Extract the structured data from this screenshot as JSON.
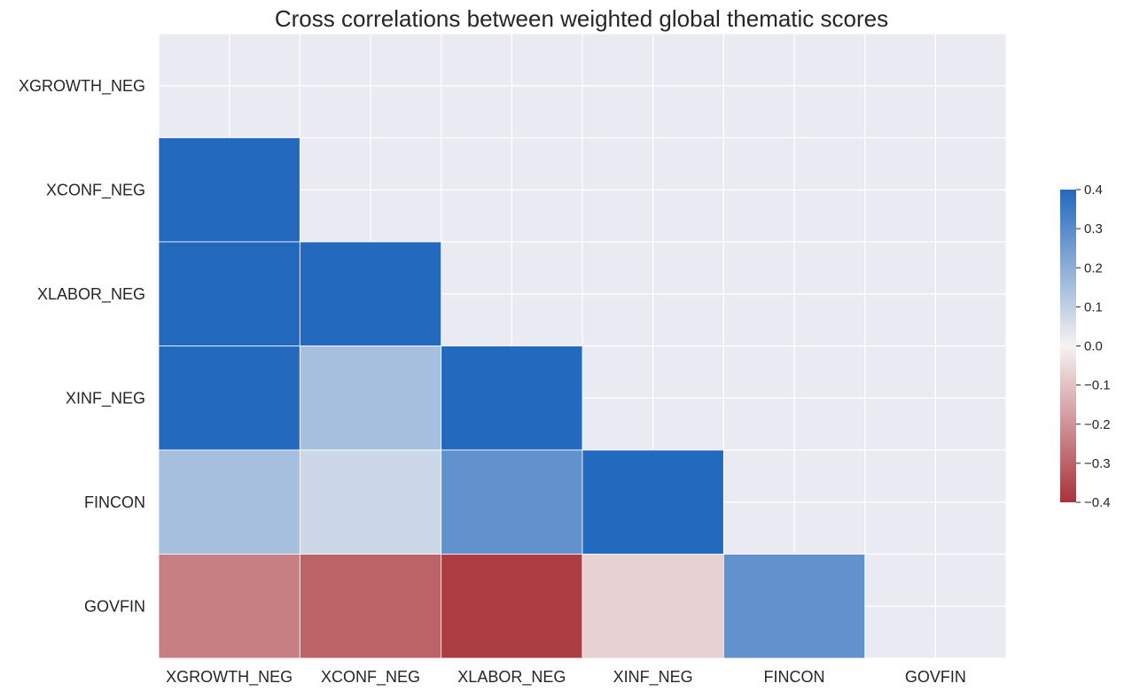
{
  "chart_data": {
    "type": "heatmap",
    "title": "Cross correlations between weighted global thematic scores",
    "xlabel": "",
    "ylabel": "",
    "row_labels": [
      "XGROWTH_NEG",
      "XCONF_NEG",
      "XLABOR_NEG",
      "XINF_NEG",
      "FINCON",
      "GOVFIN"
    ],
    "col_labels": [
      "XGROWTH_NEG",
      "XCONF_NEG",
      "XLABOR_NEG",
      "XINF_NEG",
      "FINCON",
      "GOVFIN"
    ],
    "mask": "upper triangle including diagonal",
    "matrix": [
      [
        null,
        null,
        null,
        null,
        null,
        null
      ],
      [
        0.45,
        null,
        null,
        null,
        null,
        null
      ],
      [
        0.42,
        0.48,
        null,
        null,
        null,
        null
      ],
      [
        0.4,
        0.15,
        0.43,
        null,
        null,
        null
      ],
      [
        0.15,
        0.08,
        0.28,
        0.42,
        null,
        null
      ],
      [
        -0.24,
        -0.3,
        -0.38,
        -0.07,
        0.28,
        null
      ]
    ],
    "colorbar": {
      "vmin": -0.4,
      "vmax": 0.4,
      "ticks": [
        0.4,
        0.3,
        0.2,
        0.1,
        0.0,
        -0.1,
        -0.2,
        -0.3,
        -0.4
      ],
      "tick_labels": [
        "0.4",
        "0.3",
        "0.2",
        "0.1",
        "0.0",
        "−0.1",
        "−0.2",
        "−0.3",
        "−0.4"
      ],
      "low_color": "#a8333a",
      "mid_color": "#f6f2f2",
      "high_color": "#2369bd"
    },
    "background_color": "#eaeaf2",
    "grid": true
  }
}
